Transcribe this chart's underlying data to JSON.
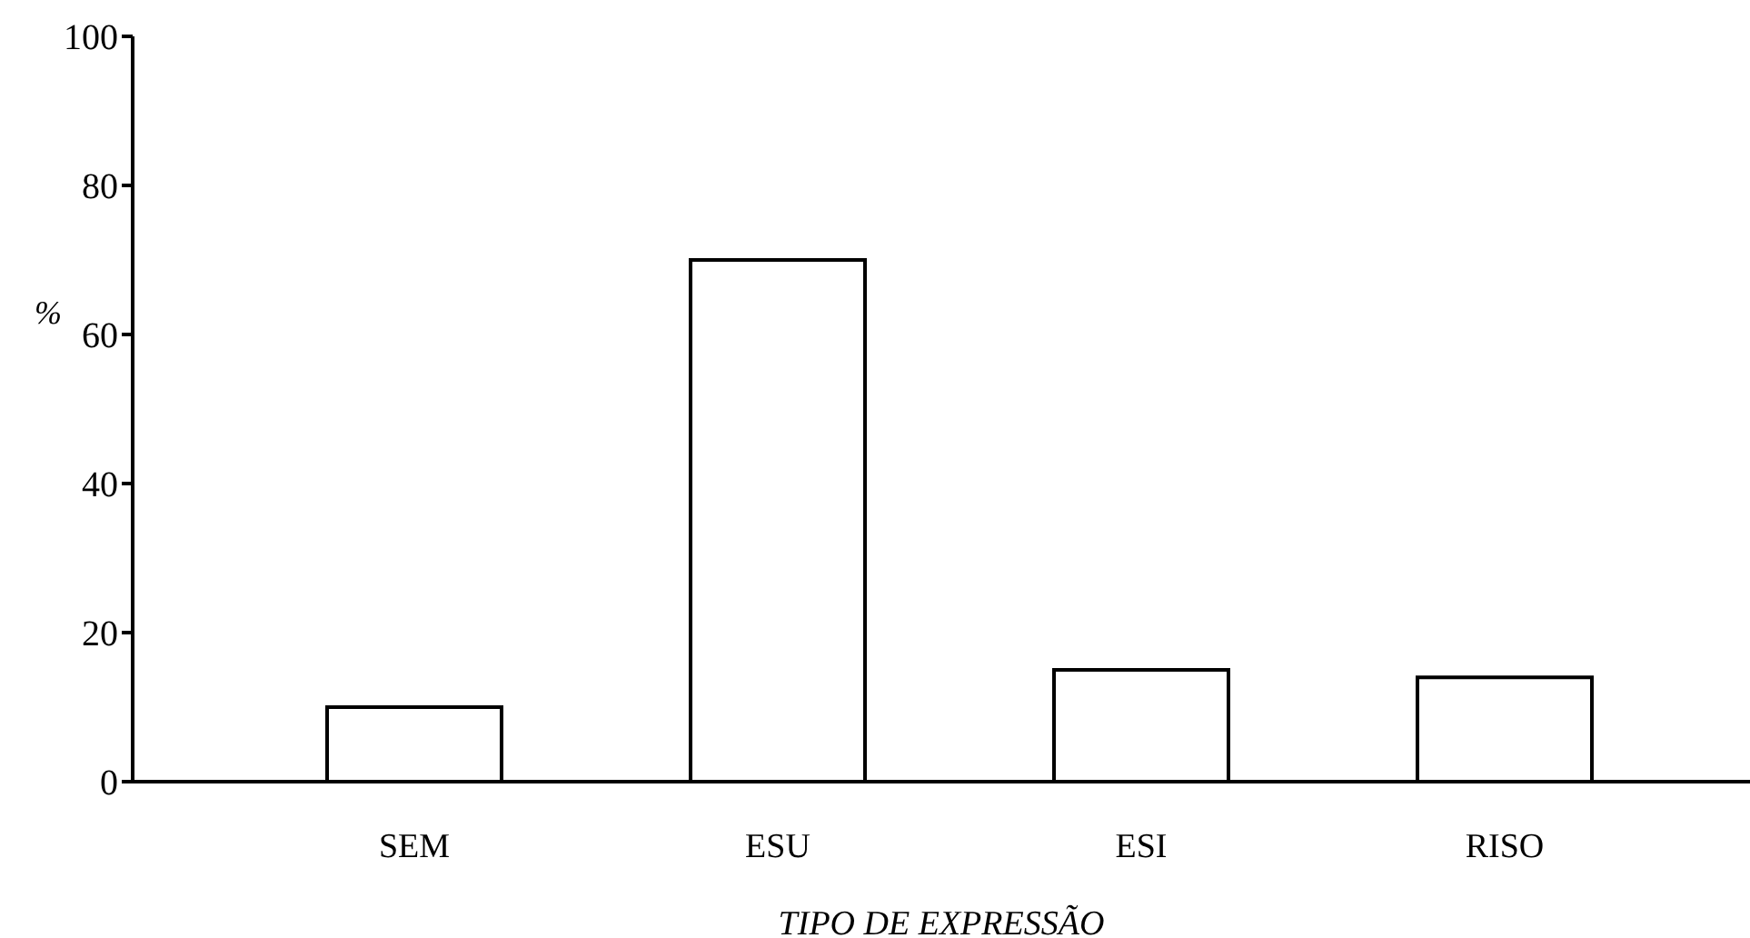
{
  "chart_data": {
    "type": "bar",
    "xlabel": "TIPO DE EXPRESSÃO",
    "ylabel": "%",
    "categories": [
      "SEM",
      "ESU",
      "ESI",
      "RISO"
    ],
    "values": [
      10,
      70,
      15,
      14
    ],
    "color": "#ffffff",
    "ylim": [
      0,
      100
    ],
    "yticks": [
      0,
      20,
      40,
      60,
      80,
      100
    ],
    "grid": false
  }
}
